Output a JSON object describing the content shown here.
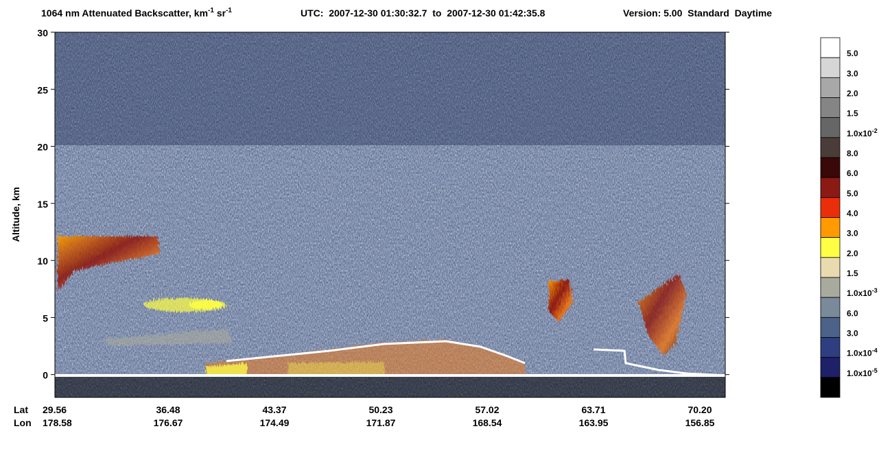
{
  "chart_data": {
    "type": "curtain",
    "title_parts": [
      "1064 nm Attenuated Backscatter, km",
      "-1",
      " sr",
      "-1"
    ],
    "utc": "UTC:  2007-12-30 01:30:32.7  to  2007-12-30 01:42:35.8",
    "version": "Version: 5.00  Standard  Daytime",
    "ylabel": "Altitude, km",
    "ylim": [
      -2,
      30
    ],
    "yticks": [
      0,
      5,
      10,
      15,
      20,
      25,
      30
    ],
    "x_row_labels": [
      "Lat",
      "Lon"
    ],
    "xticks": [
      {
        "lat": "29.56",
        "lon": "178.58"
      },
      {
        "lat": "36.48",
        "lon": "176.67"
      },
      {
        "lat": "43.37",
        "lon": "174.49"
      },
      {
        "lat": "50.23",
        "lon": "171.87"
      },
      {
        "lat": "57.02",
        "lon": "168.54"
      },
      {
        "lat": "63.71",
        "lon": "163.95"
      },
      {
        "lat": "70.20",
        "lon": "156.85"
      }
    ],
    "colorbar": {
      "colors": [
        "#ffffff",
        "#d6d6d6",
        "#a8a8a8",
        "#858585",
        "#666666",
        "#4a3c38",
        "#3a0808",
        "#8c1a14",
        "#ea2e0a",
        "#ff9a00",
        "#ffff44",
        "#eadab0",
        "#a8aa9e",
        "#7a8a9a",
        "#4c6288",
        "#2e3e80",
        "#1e2068",
        "#000000"
      ],
      "labels": [
        "5.0",
        "3.0",
        "2.0",
        "1.5",
        {
          "mantissa": "1.0x10",
          "exponent": "-2"
        },
        "8.0",
        "6.0",
        "5.0",
        "4.0",
        "3.0",
        "2.0",
        "1.5",
        {
          "mantissa": "1.0x10",
          "exponent": "-3"
        },
        "6.0",
        "3.0",
        {
          "mantissa": "1.0x10",
          "exponent": "-4"
        },
        {
          "mantissa": "1.0x10",
          "exponent": "-5"
        }
      ]
    }
  }
}
